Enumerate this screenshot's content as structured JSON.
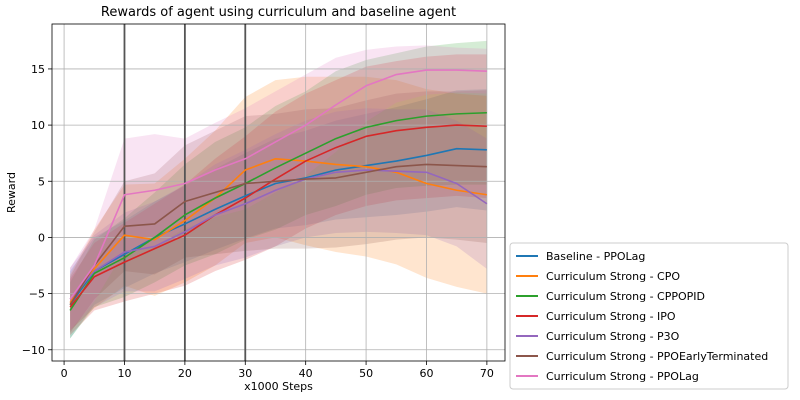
{
  "chart_data": {
    "type": "line",
    "title": "Rewards of agent using curriculum and baseline agent",
    "xlabel": "x1000 Steps",
    "ylabel": "Reward",
    "xlim": [
      -2,
      73
    ],
    "ylim": [
      -11,
      19
    ],
    "xticks": [
      0,
      10,
      20,
      30,
      40,
      50,
      60,
      70
    ],
    "yticks": [
      -10,
      -5,
      0,
      5,
      10,
      15
    ],
    "grid": true,
    "legend_position": "lower-right-outside",
    "vertical_markers": [
      10,
      20,
      30
    ],
    "x": [
      1,
      5,
      10,
      15,
      20,
      25,
      30,
      35,
      40,
      45,
      50,
      55,
      60,
      65,
      70
    ],
    "series": [
      {
        "name": "Baseline - PPOLag",
        "color": "#1f77b4",
        "values": [
          -6.0,
          -3.0,
          -1.5,
          0.0,
          1.2,
          2.5,
          3.7,
          4.8,
          5.3,
          6.0,
          6.4,
          6.8,
          7.3,
          7.9,
          7.8
        ],
        "band": [
          3.0,
          3.0,
          3.0,
          3.2,
          3.4,
          3.6,
          3.8,
          4.0,
          4.2,
          4.4,
          4.6,
          4.8,
          5.0,
          5.2,
          5.4
        ]
      },
      {
        "name": "Curriculum Strong - CPO",
        "color": "#ff7f0e",
        "values": [
          -5.8,
          -2.8,
          0.2,
          -0.2,
          1.5,
          3.5,
          6.0,
          7.0,
          6.8,
          6.5,
          6.3,
          5.8,
          4.8,
          4.2,
          3.8
        ],
        "band": [
          2.5,
          3.5,
          4.5,
          5.0,
          5.5,
          6.0,
          6.5,
          7.0,
          7.5,
          7.8,
          8.0,
          8.2,
          8.4,
          8.6,
          8.8
        ]
      },
      {
        "name": "Curriculum Strong - CPPOPID",
        "color": "#2ca02c",
        "values": [
          -6.5,
          -3.2,
          -1.8,
          0.0,
          2.0,
          3.5,
          4.8,
          6.2,
          7.5,
          8.8,
          9.8,
          10.4,
          10.8,
          11.0,
          11.1
        ],
        "band": [
          2.5,
          3.0,
          3.5,
          4.0,
          4.5,
          5.0,
          5.0,
          5.5,
          5.5,
          6.0,
          6.0,
          6.0,
          6.2,
          6.3,
          6.4
        ]
      },
      {
        "name": "Curriculum Strong - IPO",
        "color": "#d62728",
        "values": [
          -6.2,
          -3.5,
          -2.2,
          -1.0,
          0.2,
          2.0,
          3.5,
          5.2,
          6.8,
          8.0,
          9.0,
          9.5,
          9.8,
          10.0,
          9.9
        ],
        "band": [
          2.5,
          3.0,
          3.5,
          4.0,
          4.5,
          5.0,
          5.5,
          6.0,
          6.0,
          6.0,
          6.2,
          6.2,
          6.3,
          6.3,
          6.4
        ]
      },
      {
        "name": "Curriculum Strong - P3O",
        "color": "#9467bd",
        "values": [
          -5.5,
          -3.0,
          -1.3,
          -0.8,
          0.5,
          2.0,
          3.0,
          4.2,
          5.2,
          5.8,
          6.0,
          5.9,
          5.8,
          4.8,
          3.0
        ],
        "band": [
          2.8,
          3.2,
          3.5,
          4.0,
          4.2,
          4.5,
          4.8,
          5.0,
          5.2,
          5.4,
          5.5,
          5.5,
          5.6,
          5.6,
          5.8
        ]
      },
      {
        "name": "Curriculum Strong - PPOEarlyTerminated",
        "color": "#8c564b",
        "values": [
          -6.0,
          -2.5,
          1.0,
          1.2,
          3.2,
          4.0,
          4.8,
          5.0,
          5.2,
          5.3,
          5.8,
          6.3,
          6.5,
          6.4,
          6.3
        ],
        "band": [
          2.5,
          3.0,
          4.0,
          4.5,
          5.0,
          5.5,
          6.0,
          6.0,
          6.2,
          6.2,
          6.4,
          6.5,
          6.5,
          6.6,
          6.8
        ]
      },
      {
        "name": "Curriculum Strong - PPOLag",
        "color": "#e377c2",
        "values": [
          -5.5,
          -2.5,
          3.8,
          4.2,
          4.8,
          6.0,
          7.0,
          8.5,
          10.0,
          11.8,
          13.5,
          14.5,
          14.9,
          14.9,
          14.8
        ],
        "band": [
          2.8,
          3.2,
          5.0,
          5.0,
          4.0,
          4.2,
          4.5,
          4.5,
          4.5,
          4.2,
          3.2,
          2.5,
          2.2,
          2.0,
          2.0
        ]
      }
    ]
  }
}
